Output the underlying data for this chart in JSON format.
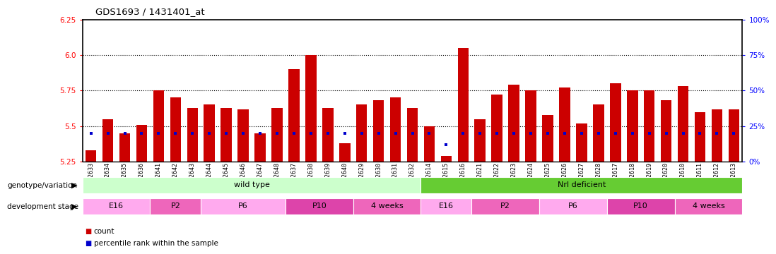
{
  "title": "GDS1693 / 1431401_at",
  "ylim_left": [
    5.25,
    6.25
  ],
  "ylim_right": [
    0,
    100
  ],
  "yticks_left": [
    5.25,
    5.5,
    5.75,
    6.0,
    6.25
  ],
  "yticks_right": [
    0,
    25,
    50,
    75,
    100
  ],
  "ytick_labels_right": [
    "0%",
    "25%",
    "50%",
    "75%",
    "100%"
  ],
  "grid_values": [
    5.5,
    5.75,
    6.0
  ],
  "samples": [
    "GSM92633",
    "GSM92634",
    "GSM92635",
    "GSM92636",
    "GSM92641",
    "GSM92642",
    "GSM92643",
    "GSM92644",
    "GSM92645",
    "GSM92646",
    "GSM92647",
    "GSM92648",
    "GSM92637",
    "GSM92638",
    "GSM92639",
    "GSM92640",
    "GSM92629",
    "GSM92630",
    "GSM92631",
    "GSM92632",
    "GSM92614",
    "GSM92615",
    "GSM92616",
    "GSM92621",
    "GSM92622",
    "GSM92623",
    "GSM92624",
    "GSM92625",
    "GSM92626",
    "GSM92627",
    "GSM92628",
    "GSM92617",
    "GSM92618",
    "GSM92619",
    "GSM92620",
    "GSM92610",
    "GSM92611",
    "GSM92612",
    "GSM92613"
  ],
  "counts": [
    5.33,
    5.55,
    5.45,
    5.51,
    5.75,
    5.7,
    5.63,
    5.65,
    5.63,
    5.62,
    5.45,
    5.63,
    5.9,
    6.0,
    5.63,
    5.38,
    5.65,
    5.68,
    5.7,
    5.63,
    5.5,
    5.29,
    6.05,
    5.55,
    5.72,
    5.79,
    5.75,
    5.58,
    5.77,
    5.52,
    5.65,
    5.8,
    5.75,
    5.75,
    5.68,
    5.78,
    5.6,
    5.62,
    5.62
  ],
  "percentile_ranks": [
    20,
    20,
    20,
    20,
    20,
    20,
    20,
    20,
    20,
    20,
    20,
    20,
    20,
    20,
    20,
    20,
    20,
    20,
    20,
    20,
    20,
    12,
    20,
    20,
    20,
    20,
    20,
    20,
    20,
    20,
    20,
    20,
    20,
    20,
    20,
    20,
    20,
    20,
    20
  ],
  "bar_color": "#cc0000",
  "percentile_color": "#0000cc",
  "background_color": "#ffffff",
  "genotype_groups": [
    {
      "label": "wild type",
      "start": 0,
      "end": 20,
      "color": "#ccffcc"
    },
    {
      "label": "Nrl deficient",
      "start": 20,
      "end": 39,
      "color": "#66cc33"
    }
  ],
  "dev_stage_groups": [
    {
      "label": "E16",
      "start": 0,
      "end": 4,
      "color": "#ffaadd"
    },
    {
      "label": "P2",
      "start": 4,
      "end": 7,
      "color": "#ff66bb"
    },
    {
      "label": "P6",
      "start": 7,
      "end": 12,
      "color": "#ffaadd"
    },
    {
      "label": "P10",
      "start": 12,
      "end": 16,
      "color": "#ff44aa"
    },
    {
      "label": "4 weeks",
      "start": 16,
      "end": 20,
      "color": "#ff66bb"
    },
    {
      "label": "E16",
      "start": 20,
      "end": 23,
      "color": "#ffaadd"
    },
    {
      "label": "P2",
      "start": 23,
      "end": 27,
      "color": "#ff66bb"
    },
    {
      "label": "P6",
      "start": 27,
      "end": 31,
      "color": "#ffaadd"
    },
    {
      "label": "P10",
      "start": 31,
      "end": 35,
      "color": "#ff44aa"
    },
    {
      "label": "4 weeks",
      "start": 35,
      "end": 39,
      "color": "#ff66bb"
    }
  ],
  "genotype_row_label": "genotype/variation",
  "dev_row_label": "development stage",
  "legend_items": [
    {
      "label": "count",
      "color": "#cc0000"
    },
    {
      "label": "percentile rank within the sample",
      "color": "#0000cc"
    }
  ]
}
